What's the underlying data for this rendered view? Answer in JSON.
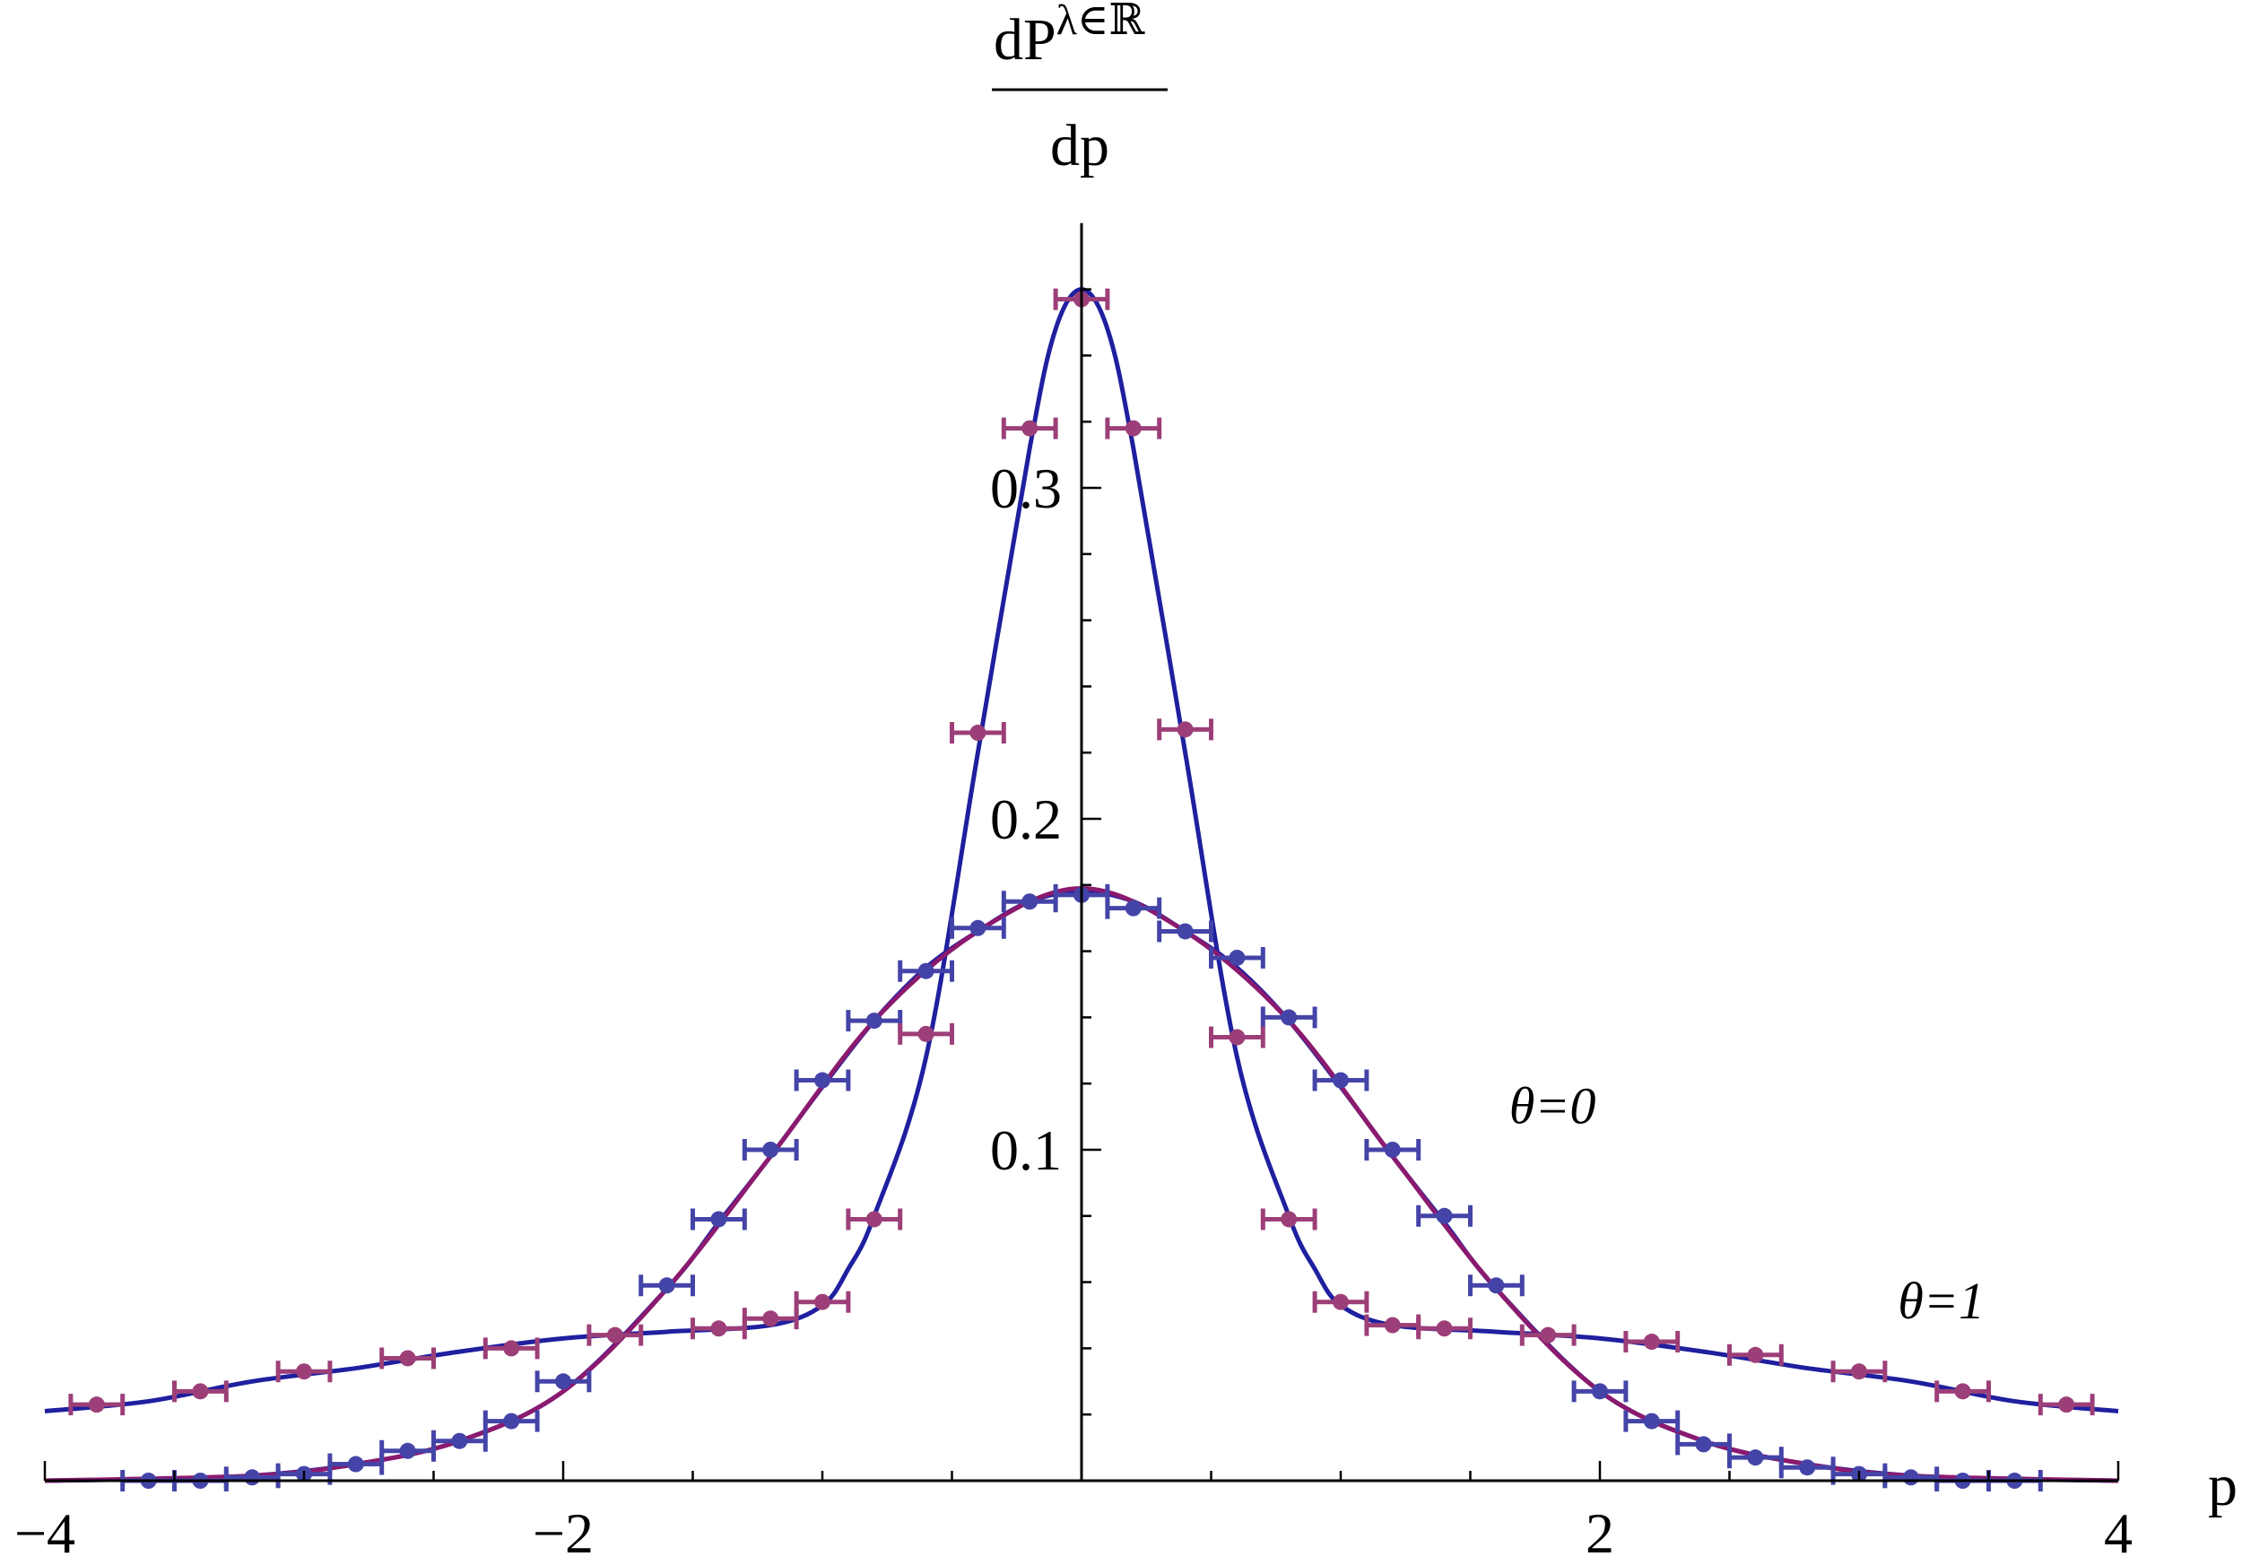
{
  "chart_data": {
    "type": "scatter",
    "title": "",
    "xlabel": "p",
    "ylabel_numerator": "dP",
    "ylabel_superscript": "λ∈ℝ",
    "ylabel_denominator": "dp",
    "xlim": [
      -4,
      4
    ],
    "ylim": [
      0,
      0.38
    ],
    "x_ticks": [
      -4,
      -2,
      2,
      4
    ],
    "x_tick_labels": [
      "−4",
      "−2",
      "2",
      "4"
    ],
    "y_ticks": [
      0.1,
      0.2,
      0.3
    ],
    "y_tick_labels": [
      "0.1",
      "0.2",
      "0.3"
    ],
    "grid": false,
    "annotations": [
      {
        "text": "θ=0",
        "x": 1.65,
        "y": 0.108
      },
      {
        "text": "θ=1",
        "x": 3.15,
        "y": 0.049
      }
    ],
    "series": [
      {
        "color": "#1f1fa0",
        "marker_color": "#4444a8",
        "curve": [
          [
            -4.0,
            0.0
          ],
          [
            -3.6,
            0.0005
          ],
          [
            -3.2,
            0.0015
          ],
          [
            -2.8,
            0.005
          ],
          [
            -2.4,
            0.012
          ],
          [
            -2.0,
            0.027
          ],
          [
            -1.6,
            0.058
          ],
          [
            -1.4,
            0.078
          ],
          [
            -1.2,
            0.098
          ],
          [
            -1.0,
            0.119
          ],
          [
            -0.8,
            0.139
          ],
          [
            -0.6,
            0.155
          ],
          [
            -0.4,
            0.166
          ],
          [
            -0.2,
            0.175
          ],
          [
            0.0,
            0.178
          ],
          [
            0.2,
            0.175
          ],
          [
            0.4,
            0.166
          ],
          [
            0.6,
            0.155
          ],
          [
            0.8,
            0.139
          ],
          [
            1.0,
            0.119
          ],
          [
            1.2,
            0.098
          ],
          [
            1.4,
            0.078
          ],
          [
            1.6,
            0.058
          ],
          [
            2.0,
            0.027
          ],
          [
            2.4,
            0.012
          ],
          [
            2.8,
            0.005
          ],
          [
            3.2,
            0.0015
          ],
          [
            3.6,
            0.0005
          ],
          [
            4.0,
            0.0
          ]
        ],
        "points": [
          {
            "x": -3.6,
            "y": 0.0,
            "dx": 0.1
          },
          {
            "x": -3.4,
            "y": 0.0,
            "dx": 0.1
          },
          {
            "x": -3.2,
            "y": 0.001,
            "dx": 0.1
          },
          {
            "x": -3.0,
            "y": 0.002,
            "dx": 0.1
          },
          {
            "x": -2.8,
            "y": 0.005,
            "dx": 0.1
          },
          {
            "x": -2.6,
            "y": 0.009,
            "dx": 0.1
          },
          {
            "x": -2.4,
            "y": 0.012,
            "dx": 0.1
          },
          {
            "x": -2.2,
            "y": 0.018,
            "dx": 0.1
          },
          {
            "x": -2.0,
            "y": 0.03,
            "dx": 0.1
          },
          {
            "x": -1.6,
            "y": 0.059,
            "dx": 0.1
          },
          {
            "x": -1.4,
            "y": 0.079,
            "dx": 0.1
          },
          {
            "x": -1.2,
            "y": 0.1,
            "dx": 0.1
          },
          {
            "x": -1.0,
            "y": 0.121,
            "dx": 0.1
          },
          {
            "x": -0.8,
            "y": 0.139,
            "dx": 0.1
          },
          {
            "x": -0.6,
            "y": 0.154,
            "dx": 0.1
          },
          {
            "x": -0.4,
            "y": 0.167,
            "dx": 0.1
          },
          {
            "x": -0.2,
            "y": 0.175,
            "dx": 0.1
          },
          {
            "x": 0.0,
            "y": 0.177,
            "dx": 0.1
          },
          {
            "x": 0.2,
            "y": 0.173,
            "dx": 0.1
          },
          {
            "x": 0.4,
            "y": 0.166,
            "dx": 0.1
          },
          {
            "x": 0.6,
            "y": 0.158,
            "dx": 0.1
          },
          {
            "x": 0.8,
            "y": 0.14,
            "dx": 0.1
          },
          {
            "x": 1.0,
            "y": 0.121,
            "dx": 0.1
          },
          {
            "x": 1.2,
            "y": 0.1,
            "dx": 0.1
          },
          {
            "x": 1.4,
            "y": 0.08,
            "dx": 0.1
          },
          {
            "x": 1.6,
            "y": 0.059,
            "dx": 0.1
          },
          {
            "x": 2.0,
            "y": 0.027,
            "dx": 0.1
          },
          {
            "x": 2.2,
            "y": 0.018,
            "dx": 0.1
          },
          {
            "x": 2.4,
            "y": 0.011,
            "dx": 0.1
          },
          {
            "x": 2.6,
            "y": 0.007,
            "dx": 0.1
          },
          {
            "x": 2.8,
            "y": 0.004,
            "dx": 0.1
          },
          {
            "x": 3.0,
            "y": 0.002,
            "dx": 0.1
          },
          {
            "x": 3.2,
            "y": 0.001,
            "dx": 0.1
          },
          {
            "x": 3.4,
            "y": 0.0,
            "dx": 0.1
          },
          {
            "x": 3.6,
            "y": 0.0,
            "dx": 0.1
          }
        ]
      },
      {
        "color": "#1f1fa0",
        "marker_color": "#9c3f78",
        "curve": [
          [
            -4.0,
            0.021
          ],
          [
            -3.6,
            0.024
          ],
          [
            -3.2,
            0.03
          ],
          [
            -2.8,
            0.034
          ],
          [
            -2.4,
            0.039
          ],
          [
            -2.0,
            0.043
          ],
          [
            -1.6,
            0.045
          ],
          [
            -1.2,
            0.047
          ],
          [
            -1.0,
            0.053
          ],
          [
            -0.9,
            0.064
          ],
          [
            -0.8,
            0.08
          ],
          [
            -0.6,
            0.128
          ],
          [
            -0.4,
            0.22
          ],
          [
            -0.2,
            0.312
          ],
          [
            -0.1,
            0.348
          ],
          [
            0.0,
            0.36
          ],
          [
            0.1,
            0.348
          ],
          [
            0.2,
            0.312
          ],
          [
            0.4,
            0.22
          ],
          [
            0.6,
            0.128
          ],
          [
            0.8,
            0.08
          ],
          [
            0.9,
            0.064
          ],
          [
            1.0,
            0.053
          ],
          [
            1.2,
            0.047
          ],
          [
            1.6,
            0.045
          ],
          [
            2.0,
            0.043
          ],
          [
            2.4,
            0.039
          ],
          [
            2.8,
            0.034
          ],
          [
            3.2,
            0.03
          ],
          [
            3.6,
            0.024
          ],
          [
            4.0,
            0.021
          ]
        ],
        "points": [
          {
            "x": -3.8,
            "y": 0.023,
            "dx": 0.1
          },
          {
            "x": -3.4,
            "y": 0.027,
            "dx": 0.1
          },
          {
            "x": -3.0,
            "y": 0.033,
            "dx": 0.1
          },
          {
            "x": -2.6,
            "y": 0.037,
            "dx": 0.1
          },
          {
            "x": -2.2,
            "y": 0.04,
            "dx": 0.1
          },
          {
            "x": -1.8,
            "y": 0.044,
            "dx": 0.1
          },
          {
            "x": -1.4,
            "y": 0.046,
            "dx": 0.1
          },
          {
            "x": -1.2,
            "y": 0.049,
            "dx": 0.1
          },
          {
            "x": -1.0,
            "y": 0.054,
            "dx": 0.1
          },
          {
            "x": -0.8,
            "y": 0.079,
            "dx": 0.1
          },
          {
            "x": -0.6,
            "y": 0.135,
            "dx": 0.1
          },
          {
            "x": -0.4,
            "y": 0.226,
            "dx": 0.1
          },
          {
            "x": -0.2,
            "y": 0.318,
            "dx": 0.1
          },
          {
            "x": 0.0,
            "y": 0.357,
            "dx": 0.1
          },
          {
            "x": 0.2,
            "y": 0.318,
            "dx": 0.1
          },
          {
            "x": 0.4,
            "y": 0.227,
            "dx": 0.1
          },
          {
            "x": 0.6,
            "y": 0.134,
            "dx": 0.1
          },
          {
            "x": 0.8,
            "y": 0.079,
            "dx": 0.1
          },
          {
            "x": 1.0,
            "y": 0.054,
            "dx": 0.1
          },
          {
            "x": 1.2,
            "y": 0.047,
            "dx": 0.1
          },
          {
            "x": 1.4,
            "y": 0.046,
            "dx": 0.1
          },
          {
            "x": 1.8,
            "y": 0.044,
            "dx": 0.1
          },
          {
            "x": 2.2,
            "y": 0.042,
            "dx": 0.1
          },
          {
            "x": 2.6,
            "y": 0.038,
            "dx": 0.1
          },
          {
            "x": 3.0,
            "y": 0.033,
            "dx": 0.1
          },
          {
            "x": 3.4,
            "y": 0.027,
            "dx": 0.1
          },
          {
            "x": 3.8,
            "y": 0.023,
            "dx": 0.1
          }
        ]
      },
      {
        "color": "#8b1a6f",
        "marker_color": "#8b1a6f",
        "curve": [
          [
            -4.0,
            0.0
          ],
          [
            -3.2,
            0.0015
          ],
          [
            -2.8,
            0.005
          ],
          [
            -2.4,
            0.012
          ],
          [
            -2.0,
            0.027
          ],
          [
            -1.6,
            0.058
          ],
          [
            -1.2,
            0.098
          ],
          [
            -0.8,
            0.139
          ],
          [
            -0.4,
            0.166
          ],
          [
            0.0,
            0.179
          ],
          [
            0.4,
            0.166
          ],
          [
            0.8,
            0.139
          ],
          [
            1.2,
            0.098
          ],
          [
            1.6,
            0.058
          ],
          [
            2.0,
            0.027
          ],
          [
            2.4,
            0.012
          ],
          [
            2.8,
            0.005
          ],
          [
            3.2,
            0.0015
          ],
          [
            4.0,
            0.0
          ]
        ],
        "points": []
      }
    ]
  }
}
